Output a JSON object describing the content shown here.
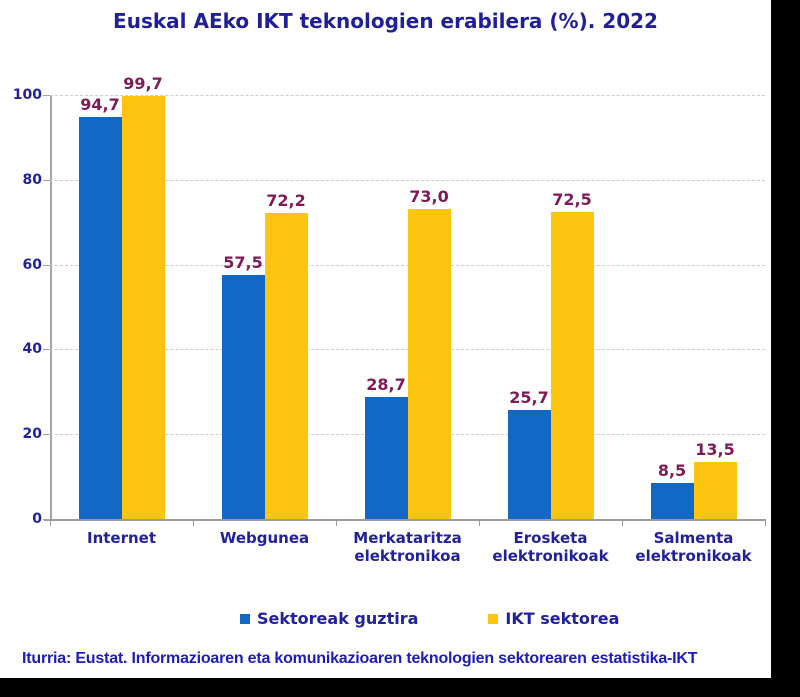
{
  "title": "Euskal AEko IKT teknologien erabilera (%). 2022",
  "footer": "Iturria: Eustat. Informazioaren eta komunikazioaren teknologien sektorearen estatistika-IKT",
  "colors": {
    "title_text": "#1f1f99",
    "axis_text": "#21219c",
    "value_label": "#7e1a56",
    "footer_text": "#1b1bbe",
    "gridline": "#cccccc",
    "axis_line": "#a3a3a3",
    "series1": "#1268c4",
    "series2": "#fdc50f",
    "background": "#ffffff",
    "outer_background": "#000000"
  },
  "chart_data": {
    "type": "bar",
    "title": "Euskal AEko IKT teknologien erabilera (%). 2022",
    "categories": [
      "Internet",
      "Webgunea",
      "Merkataritza elektronikoa",
      "Erosketa elektronikoak",
      "Salmenta elektronikoak"
    ],
    "categories_lines": [
      [
        "Internet"
      ],
      [
        "Webgunea"
      ],
      [
        "Merkataritza",
        "elektronikoa"
      ],
      [
        "Erosketa",
        "elektronikoak"
      ],
      [
        "Salmenta",
        "elektronikoak"
      ]
    ],
    "series": [
      {
        "name": "Sektoreak guztira",
        "color": "#1268c4",
        "values": [
          94.7,
          57.5,
          28.7,
          25.7,
          8.5
        ]
      },
      {
        "name": "IKT sektorea",
        "color": "#fdc50f",
        "values": [
          99.7,
          72.2,
          73.0,
          72.5,
          13.5
        ]
      }
    ],
    "value_labels": [
      [
        "94,7",
        "57,5",
        "28,7",
        "25,7",
        "8,5"
      ],
      [
        "99,7",
        "72,2",
        "73,0",
        "72,5",
        "13,5"
      ]
    ],
    "xlabel": "",
    "ylabel": "",
    "ylim": [
      0,
      100
    ],
    "yticks": [
      0,
      20,
      40,
      60,
      80,
      100
    ],
    "grid": true,
    "legend_position": "bottom",
    "source_note": "Iturria: Eustat. Informazioaren eta komunikazioaren teknologien sektorearen estatistika-IKT"
  }
}
